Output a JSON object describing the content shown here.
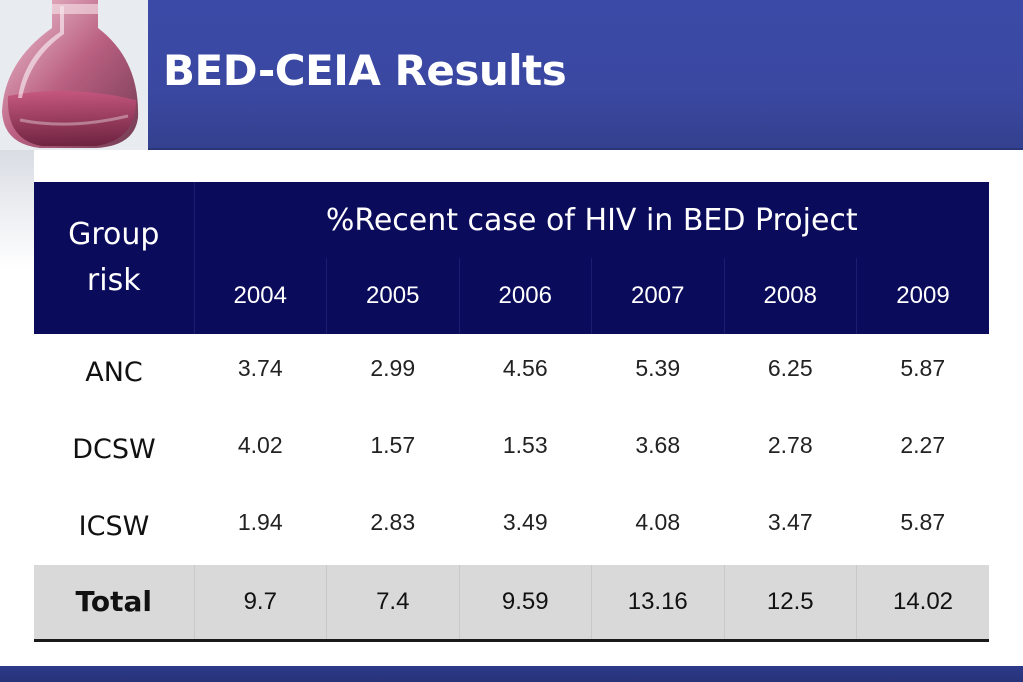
{
  "slide": {
    "title": "BED-CEIA Results"
  },
  "table": {
    "group_header": "Group\nrisk",
    "super_header": "%Recent case of HIV in BED Project",
    "years": [
      "2004",
      "2005",
      "2006",
      "2007",
      "2008",
      "2009"
    ],
    "rows": [
      {
        "label": "ANC",
        "values": [
          "3.74",
          "2.99",
          "4.56",
          "5.39",
          "6.25",
          "5.87"
        ]
      },
      {
        "label": "DCSW",
        "values": [
          "4.02",
          "1.57",
          "1.53",
          "3.68",
          "2.78",
          "2.27"
        ]
      },
      {
        "label": "ICSW",
        "values": [
          "1.94",
          "2.83",
          "3.49",
          "4.08",
          "3.47",
          "5.87"
        ]
      }
    ],
    "total": {
      "label": "Total",
      "values": [
        "9.7",
        "7.4",
        "9.59",
        "13.16",
        "12.5",
        "14.02"
      ]
    }
  },
  "colors": {
    "header_band": "#3b4aa6",
    "table_header": "#0b0b5c",
    "total_row": "#d9d9d9"
  },
  "icons": {
    "decorative": "lab-flask-icon"
  }
}
